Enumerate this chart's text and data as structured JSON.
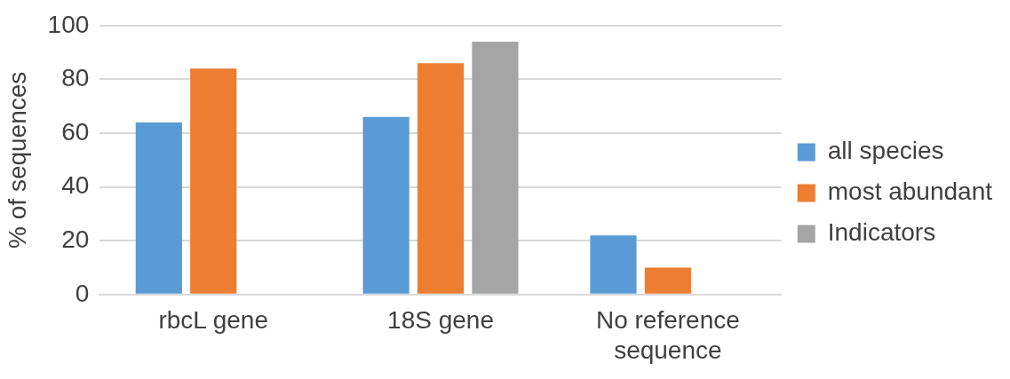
{
  "chart_data": {
    "type": "bar",
    "ylabel": "% of sequences",
    "categories": [
      "rbcL gene",
      "18S gene",
      "No reference sequence"
    ],
    "series": [
      {
        "name": "all species",
        "color": "#5b9bd5",
        "values": [
          64,
          66,
          22
        ]
      },
      {
        "name": "most abundant",
        "color": "#ed7d31",
        "values": [
          84,
          86,
          10
        ]
      },
      {
        "name": "Indicators",
        "color": "#a5a5a5",
        "values": [
          null,
          94,
          null
        ]
      }
    ],
    "ylim": [
      0,
      100
    ],
    "yticks": [
      0,
      20,
      40,
      60,
      80,
      100
    ],
    "grid": "y",
    "legend": "right"
  }
}
